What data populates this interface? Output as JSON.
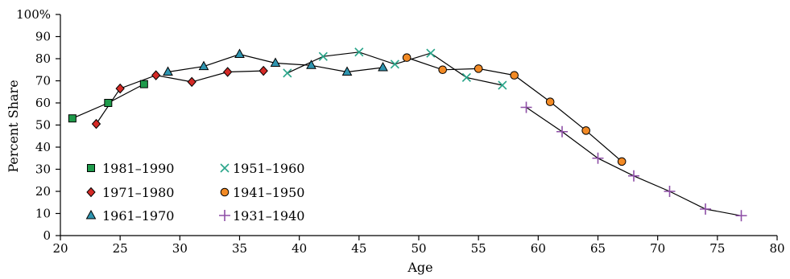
{
  "chart_data": {
    "type": "line",
    "title": "",
    "xlabel": "Age",
    "ylabel": "Percent Share",
    "xlim": [
      20,
      80
    ],
    "ylim": [
      0,
      100
    ],
    "x_ticks": [
      "20",
      "25",
      "30",
      "35",
      "40",
      "45",
      "50",
      "55",
      "60",
      "65",
      "70",
      "75",
      "80"
    ],
    "y_ticks": [
      "0",
      "10",
      "20",
      "30",
      "40",
      "50",
      "60",
      "70",
      "80",
      "90",
      "100%"
    ],
    "grid": false,
    "legend_position": "bottom-left",
    "series": [
      {
        "name": "1981–1990",
        "marker": "square",
        "color": "#1e9a4a",
        "points": [
          [
            21,
            53
          ],
          [
            24,
            60
          ],
          [
            27,
            68.5
          ]
        ]
      },
      {
        "name": "1971–1980",
        "marker": "diamond",
        "color": "#d42a26",
        "points": [
          [
            23,
            50.5
          ],
          [
            25,
            66.5
          ],
          [
            28,
            72.5
          ],
          [
            31,
            69.5
          ],
          [
            34,
            74
          ],
          [
            37,
            74.5
          ]
        ]
      },
      {
        "name": "1961–1970",
        "marker": "triangle",
        "color": "#2f95b0",
        "points": [
          [
            29,
            74
          ],
          [
            32,
            76.5
          ],
          [
            35,
            82
          ],
          [
            38,
            78
          ],
          [
            41,
            77
          ],
          [
            44,
            74
          ],
          [
            47,
            76
          ]
        ]
      },
      {
        "name": "1951–1960",
        "marker": "x",
        "color": "#2aa58a",
        "points": [
          [
            39,
            73.5
          ],
          [
            42,
            81
          ],
          [
            45,
            83
          ],
          [
            48,
            77.5
          ],
          [
            51,
            82.5
          ],
          [
            54,
            71.5
          ],
          [
            57,
            68
          ]
        ]
      },
      {
        "name": "1941–1950",
        "marker": "circle",
        "color": "#f28a25",
        "points": [
          [
            49,
            80.5
          ],
          [
            52,
            75
          ],
          [
            55,
            75.5
          ],
          [
            58,
            72.5
          ],
          [
            61,
            60.5
          ],
          [
            64,
            47.5
          ],
          [
            67,
            33.5
          ]
        ]
      },
      {
        "name": "1931–1940",
        "marker": "plus",
        "color": "#8e4fa6",
        "points": [
          [
            59,
            58
          ],
          [
            62,
            47
          ],
          [
            65,
            35
          ],
          [
            68,
            27
          ],
          [
            71,
            20
          ],
          [
            74,
            12
          ],
          [
            77,
            9
          ]
        ]
      }
    ]
  }
}
